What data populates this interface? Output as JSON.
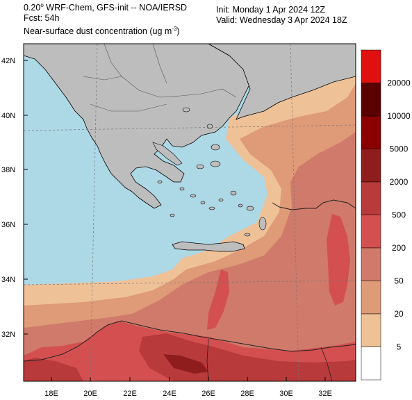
{
  "header": {
    "line1_prefix": "0.20",
    "line1_suffix": " WRF-Chem, GFS-init -- NOA/IERSD",
    "line2": "Fcst: 54h",
    "line3_text": "Near-surface dust concentration (ug m",
    "line3_exp": "-3",
    "line3_close": ")",
    "init": "Init: Monday 1 Apr 2024  12Z",
    "valid": "Valid: Wednesday 3 Apr 2024  18Z"
  },
  "lat_labels": [
    "42N",
    "40N",
    "38N",
    "36N",
    "34N",
    "32N"
  ],
  "lon_labels": [
    "18E",
    "20E",
    "22E",
    "24E",
    "26E",
    "28E",
    "30E",
    "32E"
  ],
  "legend": {
    "labels": [
      "20000",
      "10000",
      "5000",
      "2000",
      "500",
      "200",
      "50",
      "20",
      "5"
    ],
    "colors": [
      "#e01010",
      "#5a0000",
      "#8a0000",
      "#8f1d1d",
      "#b83a3a",
      "#d45050",
      "#cf7a6a",
      "#df9a78",
      "#efc197",
      "#ffffff"
    ]
  },
  "colors": {
    "sea": "#add8e6",
    "land": "#bdbdbd"
  }
}
